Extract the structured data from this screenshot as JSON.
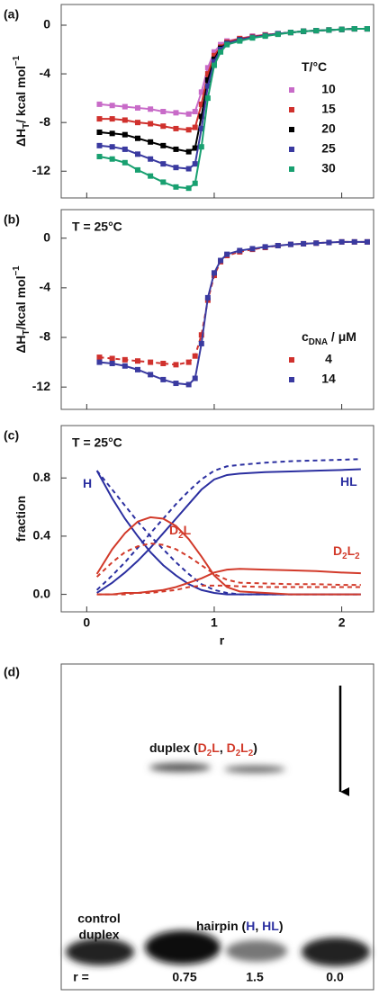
{
  "chart_data": [
    {
      "type": "scatter",
      "panel_label": "(a)",
      "ylabel": [
        {
          "text": "ΔH"
        },
        {
          "sub": "T"
        },
        {
          "text": "/ kcal mol"
        },
        {
          "sup": "−1"
        }
      ],
      "x": [
        0.1,
        0.2,
        0.3,
        0.4,
        0.5,
        0.6,
        0.7,
        0.8,
        0.85,
        0.9,
        0.95,
        1.0,
        1.05,
        1.1,
        1.2,
        1.3,
        1.4,
        1.5,
        1.6,
        1.7,
        1.8,
        1.9,
        2.0,
        2.1,
        2.2
      ],
      "xlim": [
        -0.2,
        2.25
      ],
      "xticks": [
        0,
        1,
        2
      ],
      "xtick_labels": false,
      "ylim": [
        -14.2,
        1.7
      ],
      "yticks": [
        0,
        -4,
        -8,
        -12
      ],
      "legend": {
        "title": [
          {
            "text": "T/°C"
          }
        ],
        "corner": "right"
      },
      "series": [
        {
          "name": "10",
          "color": "#c86bc8",
          "line": "solid",
          "values": [
            -6.5,
            -6.6,
            -6.7,
            -6.8,
            -6.9,
            -7.1,
            -7.2,
            -7.3,
            -7.1,
            -5.5,
            -3.5,
            -2.2,
            -1.6,
            -1.3,
            -1.1,
            -0.9,
            -0.8,
            -0.7,
            -0.6,
            -0.5,
            -0.45,
            -0.4,
            -0.35,
            -0.3,
            -0.3
          ]
        },
        {
          "name": "15",
          "color": "#d0312d",
          "line": "solid",
          "values": [
            -7.7,
            -7.7,
            -7.8,
            -8.0,
            -8.1,
            -8.3,
            -8.5,
            -8.6,
            -8.4,
            -6.5,
            -4.0,
            -2.5,
            -1.8,
            -1.4,
            -1.1,
            -0.95,
            -0.8,
            -0.7,
            -0.6,
            -0.5,
            -0.45,
            -0.4,
            -0.35,
            -0.3,
            -0.3
          ]
        },
        {
          "name": "20",
          "color": "#000000",
          "line": "solid",
          "values": [
            -8.8,
            -8.9,
            -9.0,
            -9.3,
            -9.6,
            -9.9,
            -10.2,
            -10.4,
            -10.1,
            -7.5,
            -4.5,
            -2.8,
            -1.9,
            -1.5,
            -1.2,
            -1.0,
            -0.85,
            -0.7,
            -0.6,
            -0.5,
            -0.45,
            -0.4,
            -0.35,
            -0.3,
            -0.3
          ]
        },
        {
          "name": "25",
          "color": "#3a3aa0",
          "line": "solid",
          "values": [
            -9.9,
            -10.0,
            -10.2,
            -10.6,
            -11.0,
            -11.4,
            -11.7,
            -11.8,
            -11.4,
            -8.5,
            -5.0,
            -3.0,
            -2.0,
            -1.5,
            -1.2,
            -1.0,
            -0.85,
            -0.7,
            -0.6,
            -0.5,
            -0.45,
            -0.4,
            -0.35,
            -0.3,
            -0.3
          ]
        },
        {
          "name": "30",
          "color": "#18a070",
          "line": "solid",
          "values": [
            -10.8,
            -11.0,
            -11.3,
            -11.9,
            -12.4,
            -12.9,
            -13.3,
            -13.4,
            -13.0,
            -10.0,
            -6.0,
            -3.3,
            -2.2,
            -1.6,
            -1.3,
            -1.05,
            -0.9,
            -0.75,
            -0.6,
            -0.5,
            -0.45,
            -0.4,
            -0.35,
            -0.3,
            -0.3
          ]
        }
      ]
    },
    {
      "type": "scatter",
      "panel_label": "(b)",
      "annotation": "T = 25°C",
      "ylabel": [
        {
          "text": "ΔH"
        },
        {
          "sub": "T"
        },
        {
          "text": "/kcal mol"
        },
        {
          "sup": "−1"
        }
      ],
      "x": [
        0.1,
        0.2,
        0.3,
        0.4,
        0.5,
        0.6,
        0.7,
        0.8,
        0.85,
        0.9,
        0.95,
        1.0,
        1.05,
        1.1,
        1.2,
        1.3,
        1.4,
        1.5,
        1.6,
        1.7,
        1.8,
        1.9,
        2.0,
        2.1,
        2.2
      ],
      "xlim": [
        -0.2,
        2.25
      ],
      "xticks": [
        0,
        1,
        2
      ],
      "xtick_labels": false,
      "ylim": [
        -13.8,
        2.3
      ],
      "yticks": [
        0,
        -4,
        -8,
        -12
      ],
      "legend": {
        "title": [
          {
            "text": "c"
          },
          {
            "sub": "DNA"
          },
          {
            "text": " / μM"
          }
        ],
        "corner": "right"
      },
      "series": [
        {
          "name": "4",
          "color": "#d0312d",
          "line": "dashed",
          "values": [
            -9.6,
            -9.7,
            -9.8,
            -9.9,
            -10.0,
            -10.1,
            -10.2,
            -10.0,
            -9.5,
            -7.8,
            -5.0,
            -3.0,
            -1.9,
            -1.4,
            -1.1,
            -0.9,
            -0.75,
            -0.6,
            -0.5,
            -0.45,
            -0.4,
            -0.35,
            -0.3,
            -0.3,
            -0.3
          ]
        },
        {
          "name": "14",
          "color": "#3a3aa0",
          "line": "solid",
          "values": [
            -10.0,
            -10.1,
            -10.3,
            -10.6,
            -11.0,
            -11.4,
            -11.7,
            -11.8,
            -11.3,
            -8.5,
            -4.8,
            -2.8,
            -1.8,
            -1.3,
            -1.0,
            -0.85,
            -0.7,
            -0.6,
            -0.5,
            -0.45,
            -0.4,
            -0.35,
            -0.3,
            -0.3,
            -0.3
          ]
        }
      ]
    },
    {
      "type": "line",
      "panel_label": "(c)",
      "annotation": "T = 25°C",
      "ylabel": [
        {
          "text": "fraction"
        }
      ],
      "xlabel": "r",
      "x": [
        0.08,
        0.2,
        0.3,
        0.4,
        0.5,
        0.6,
        0.7,
        0.8,
        0.9,
        1.0,
        1.1,
        1.2,
        1.4,
        1.6,
        1.8,
        2.0,
        2.15
      ],
      "xlim": [
        -0.2,
        2.25
      ],
      "xticks": [
        0,
        1,
        2
      ],
      "xtick_labels": true,
      "ylim": [
        -0.12,
        1.16
      ],
      "yticks": [
        {
          "value": 0,
          "label": "0.0"
        },
        0.4,
        0.8
      ],
      "series": [
        {
          "color": "#2b2fa0",
          "line": "solid",
          "values": [
            0.85,
            0.66,
            0.52,
            0.4,
            0.29,
            0.2,
            0.13,
            0.07,
            0.03,
            0.01,
            0.0,
            0,
            0,
            0,
            0,
            0,
            0
          ]
        },
        {
          "color": "#2b2fa0",
          "line": "dashed",
          "values": [
            0.85,
            0.72,
            0.61,
            0.5,
            0.4,
            0.31,
            0.22,
            0.14,
            0.07,
            0.03,
            0.01,
            0,
            0,
            0,
            0,
            0,
            0
          ]
        },
        {
          "color": "#2b2fa0",
          "line": "solid",
          "values": [
            0.01,
            0.08,
            0.15,
            0.23,
            0.32,
            0.42,
            0.52,
            0.62,
            0.72,
            0.79,
            0.82,
            0.83,
            0.84,
            0.845,
            0.85,
            0.855,
            0.86
          ]
        },
        {
          "color": "#2b2fa0",
          "line": "dashed",
          "values": [
            0.03,
            0.13,
            0.22,
            0.32,
            0.42,
            0.52,
            0.62,
            0.71,
            0.79,
            0.85,
            0.88,
            0.89,
            0.905,
            0.915,
            0.92,
            0.925,
            0.93
          ]
        },
        {
          "color": "#d23a2a",
          "line": "solid",
          "values": [
            0.14,
            0.31,
            0.42,
            0.5,
            0.53,
            0.52,
            0.47,
            0.38,
            0.26,
            0.13,
            0.05,
            0.02,
            0.01,
            0,
            0,
            0,
            0
          ]
        },
        {
          "color": "#d23a2a",
          "line": "dashed",
          "values": [
            0.12,
            0.22,
            0.29,
            0.33,
            0.35,
            0.34,
            0.31,
            0.26,
            0.2,
            0.14,
            0.1,
            0.08,
            0.075,
            0.07,
            0.07,
            0.065,
            0.065
          ]
        },
        {
          "color": "#d23a2a",
          "line": "solid",
          "values": [
            0,
            0,
            0.01,
            0.01,
            0.02,
            0.03,
            0.05,
            0.08,
            0.11,
            0.15,
            0.17,
            0.175,
            0.17,
            0.165,
            0.16,
            0.15,
            0.145
          ]
        },
        {
          "color": "#d23a2a",
          "line": "dashed",
          "values": [
            0,
            0,
            0,
            0.01,
            0.01,
            0.02,
            0.03,
            0.05,
            0.06,
            0.06,
            0.06,
            0.055,
            0.05,
            0.05,
            0.05,
            0.05,
            0.05
          ]
        }
      ],
      "annotations": [
        {
          "color": "#2b2fa0",
          "parts": [
            {
              "text": "H"
            }
          ]
        },
        {
          "color": "#2b2fa0",
          "parts": [
            {
              "text": "HL"
            }
          ]
        },
        {
          "color": "#d23a2a",
          "parts": [
            {
              "text": "D"
            },
            {
              "sub": "2"
            },
            {
              "text": "L"
            }
          ]
        },
        {
          "color": "#d23a2a",
          "parts": [
            {
              "text": "D"
            },
            {
              "sub": "2"
            },
            {
              "text": "L"
            },
            {
              "sub": "2"
            }
          ]
        }
      ]
    }
  ],
  "gel": {
    "panel_label": "(d)",
    "upper_band_label": [
      {
        "text": "duplex ("
      },
      {
        "text": "D",
        "color": "#d23a2a"
      },
      {
        "sub": "2",
        "color": "#d23a2a"
      },
      {
        "text": "L",
        "color": "#d23a2a"
      },
      {
        "text": ", "
      },
      {
        "text": "D",
        "color": "#d23a2a"
      },
      {
        "sub": "2",
        "color": "#d23a2a"
      },
      {
        "text": "L",
        "color": "#d23a2a"
      },
      {
        "sub": "2",
        "color": "#d23a2a"
      },
      {
        "text": ")"
      }
    ],
    "control_label": [
      "control",
      "duplex"
    ],
    "hairpin_label": [
      {
        "text": "hairpin ("
      },
      {
        "text": "H",
        "color": "#2b2fa0"
      },
      {
        "text": ", "
      },
      {
        "text": "HL",
        "color": "#2b2fa0"
      },
      {
        "text": ")"
      }
    ],
    "lane_header": "r =",
    "lanes": [
      "0.75",
      "1.5",
      "0.0"
    ]
  }
}
